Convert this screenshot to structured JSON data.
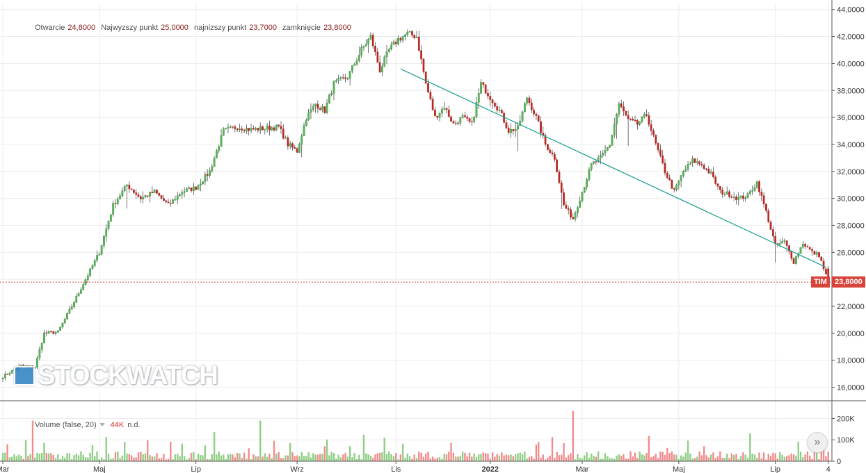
{
  "legend": {
    "open_label": "Otwarcie",
    "open_value": "24,8000",
    "high_label": "Najwyzszy punkt",
    "high_value": "25,0000",
    "low_label": "najnizszy punkt",
    "low_value": "23,7000",
    "close_label": "zamknięcie",
    "close_value": "23,8000"
  },
  "volume_legend": {
    "label": "Volume (false, 20)",
    "value": "44K",
    "extra": "n.d."
  },
  "watermark": "STOCKWATCH",
  "price_tag": {
    "symbol": "TIM",
    "value": "23,8000"
  },
  "scroll_button": "»",
  "colors": {
    "up": "#8fce84",
    "down": "#f28b8b",
    "candle_up": "#2f8f3b",
    "candle_down": "#c8312b",
    "trend": "#21a393",
    "price_line": "#d9443a"
  },
  "chart_data": {
    "type": "candlestick",
    "price_axis": {
      "range": [
        15000,
        44500
      ],
      "ticks": [
        16000,
        18000,
        20000,
        22000,
        24000,
        26000,
        28000,
        30000,
        32000,
        34000,
        36000,
        38000,
        40000,
        42000,
        44000
      ],
      "tick_labels": [
        "16,0000",
        "18,0000",
        "20,0000",
        "22,0000",
        "24,0000",
        "26,0000",
        "28,0000",
        "30,0000",
        "32,0000",
        "34,0000",
        "36,0000",
        "38,0000",
        "40,0000",
        "42,0000",
        "44,0000"
      ]
    },
    "volume_axis": {
      "range": [
        0,
        260
      ],
      "ticks": [
        0,
        100,
        200
      ],
      "tick_labels": [
        "0",
        "100K",
        "200K"
      ]
    },
    "x_axis": {
      "labels": [
        {
          "text": "Mar",
          "i": 0
        },
        {
          "text": "Maj",
          "i": 42
        },
        {
          "text": "Lip",
          "i": 84
        },
        {
          "text": "Wrz",
          "i": 128
        },
        {
          "text": "Lis",
          "i": 171
        },
        {
          "text": "2022",
          "i": 212
        },
        {
          "text": "Mar",
          "i": 252
        },
        {
          "text": "Maj",
          "i": 294
        },
        {
          "text": "Lip",
          "i": 336
        },
        {
          "text": "4",
          "i": 359
        }
      ]
    },
    "anchors": [
      [
        0,
        16800
      ],
      [
        8,
        17600
      ],
      [
        14,
        17500
      ],
      [
        18,
        20000
      ],
      [
        24,
        20100
      ],
      [
        30,
        22000
      ],
      [
        36,
        24000
      ],
      [
        42,
        26000
      ],
      [
        48,
        29500
      ],
      [
        54,
        31000
      ],
      [
        60,
        30000
      ],
      [
        66,
        30500
      ],
      [
        72,
        29500
      ],
      [
        78,
        30500
      ],
      [
        84,
        30800
      ],
      [
        90,
        32000
      ],
      [
        96,
        35000
      ],
      [
        102,
        35300
      ],
      [
        108,
        35100
      ],
      [
        114,
        35200
      ],
      [
        120,
        35300
      ],
      [
        124,
        34000
      ],
      [
        128,
        33500
      ],
      [
        132,
        36000
      ],
      [
        136,
        37000
      ],
      [
        140,
        36500
      ],
      [
        144,
        38500
      ],
      [
        150,
        39000
      ],
      [
        156,
        41000
      ],
      [
        160,
        42000
      ],
      [
        164,
        39500
      ],
      [
        168,
        41000
      ],
      [
        172,
        41800
      ],
      [
        176,
        42200
      ],
      [
        180,
        42000
      ],
      [
        184,
        38500
      ],
      [
        188,
        36000
      ],
      [
        192,
        36800
      ],
      [
        196,
        35500
      ],
      [
        200,
        36000
      ],
      [
        204,
        35500
      ],
      [
        208,
        38500
      ],
      [
        212,
        37500
      ],
      [
        216,
        36500
      ],
      [
        220,
        35000
      ],
      [
        224,
        35200
      ],
      [
        228,
        37500
      ],
      [
        232,
        36000
      ],
      [
        236,
        34000
      ],
      [
        240,
        33000
      ],
      [
        244,
        29500
      ],
      [
        248,
        28500
      ],
      [
        252,
        30500
      ],
      [
        256,
        32500
      ],
      [
        260,
        33000
      ],
      [
        264,
        34000
      ],
      [
        268,
        37000
      ],
      [
        272,
        35800
      ],
      [
        276,
        35500
      ],
      [
        280,
        36200
      ],
      [
        284,
        34000
      ],
      [
        288,
        32000
      ],
      [
        292,
        30500
      ],
      [
        296,
        32000
      ],
      [
        300,
        32800
      ],
      [
        304,
        32500
      ],
      [
        308,
        31800
      ],
      [
        312,
        30500
      ],
      [
        316,
        30300
      ],
      [
        320,
        30000
      ],
      [
        324,
        30200
      ],
      [
        328,
        31200
      ],
      [
        332,
        29000
      ],
      [
        336,
        26500
      ],
      [
        340,
        26800
      ],
      [
        344,
        25300
      ],
      [
        348,
        26700
      ],
      [
        352,
        26000
      ],
      [
        355,
        25800
      ],
      [
        359,
        23800
      ]
    ],
    "last_candle": {
      "open": 24800,
      "high": 25000,
      "low": 23700,
      "close": 23800
    },
    "last_price": 23800,
    "trend_line": {
      "from": {
        "i": 173,
        "price": 39600
      },
      "to": {
        "i": 358,
        "price": 24900
      }
    },
    "candle_count": 360
  }
}
